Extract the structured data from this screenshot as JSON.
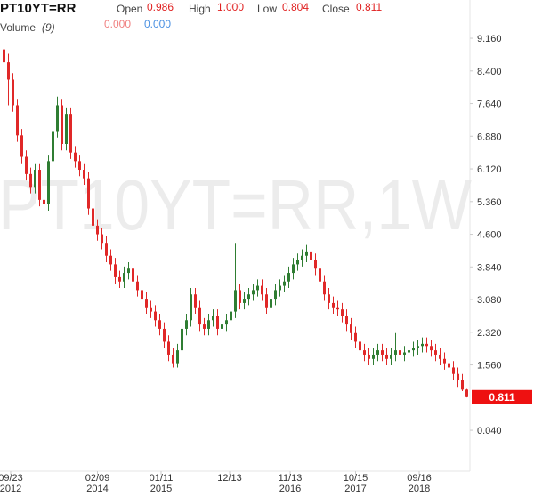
{
  "header": {
    "symbol": "PT10YT=RR",
    "open_label": "Open",
    "open": "0.986",
    "high_label": "High",
    "high": "1.000",
    "low_label": "Low",
    "low": "0.804",
    "close_label": "Close",
    "close": "0.811",
    "volume_label": "Volume",
    "volume_period": "(9)",
    "volume_values": [
      "0.000",
      "0.000"
    ]
  },
  "chart_data": {
    "type": "candlestick",
    "watermark": "PT10YT=RR,1W",
    "up_color": "#2f7d32",
    "down_color": "#e02828",
    "last_color": "#ee1111",
    "xlim": [
      -0.9,
      104.7
    ],
    "ylim": [
      -0.91,
      10.05
    ],
    "yticks": [
      {
        "value": 0.04,
        "label": "0.040"
      },
      {
        "value": 1.56,
        "label": "1.560"
      },
      {
        "value": 2.32,
        "label": "2.320"
      },
      {
        "value": 3.08,
        "label": "3.080"
      },
      {
        "value": 3.84,
        "label": "3.840"
      },
      {
        "value": 4.6,
        "label": "4.600"
      },
      {
        "value": 5.36,
        "label": "5.360"
      },
      {
        "value": 6.12,
        "label": "6.120"
      },
      {
        "value": 6.88,
        "label": "6.880"
      },
      {
        "value": 7.64,
        "label": "7.640"
      },
      {
        "value": 8.4,
        "label": "8.400"
      },
      {
        "value": 9.16,
        "label": "9.160"
      }
    ],
    "xticks": [
      {
        "value": 1.5,
        "label": "09/23",
        "year": "2012"
      },
      {
        "value": 21,
        "label": "02/09",
        "year": "2014"
      },
      {
        "value": 35.3,
        "label": "01/11",
        "year": "2015"
      },
      {
        "value": 50.7,
        "label": "12/13"
      },
      {
        "value": 64.3,
        "label": "11/13",
        "year": "2016"
      },
      {
        "value": 79,
        "label": "10/15",
        "year": "2017"
      },
      {
        "value": 93.3,
        "label": "09/16",
        "year": "2018"
      }
    ],
    "open": [
      8.9,
      8.6,
      8.2,
      7.6,
      6.9,
      6.4,
      6.0,
      5.7,
      6.1,
      5.4,
      5.3,
      6.3,
      7.0,
      7.6,
      6.7,
      7.4,
      6.5,
      6.3,
      6.1,
      5.9,
      5.2,
      4.8,
      4.6,
      4.4,
      4.1,
      3.9,
      3.6,
      3.5,
      3.7,
      3.8,
      3.5,
      3.3,
      3.1,
      2.9,
      2.8,
      2.6,
      2.4,
      2.1,
      1.8,
      1.6,
      1.9,
      2.4,
      2.6,
      3.2,
      2.9,
      2.5,
      2.4,
      2.6,
      2.7,
      2.4,
      2.5,
      2.6,
      2.8,
      3.3,
      3.0,
      3.1,
      3.2,
      3.3,
      3.4,
      3.2,
      2.9,
      3.1,
      3.3,
      3.4,
      3.5,
      3.7,
      3.9,
      4.0,
      4.1,
      4.2,
      4.0,
      3.8,
      3.5,
      3.2,
      3.0,
      2.9,
      2.85,
      2.7,
      2.5,
      2.3,
      2.1,
      1.9,
      1.8,
      1.7,
      1.8,
      1.9,
      1.8,
      1.7,
      1.8,
      1.9,
      1.8,
      1.85,
      1.9,
      1.95,
      2.0,
      2.05,
      2.0,
      1.9,
      1.8,
      1.7,
      1.6,
      1.5,
      1.35,
      1.2,
      0.986
    ],
    "high": [
      9.2,
      8.8,
      8.35,
      7.75,
      7.05,
      6.55,
      6.15,
      6.25,
      6.25,
      5.6,
      6.45,
      7.15,
      7.8,
      7.75,
      7.55,
      7.55,
      6.65,
      6.45,
      6.25,
      6.05,
      5.35,
      4.95,
      4.75,
      4.55,
      4.25,
      4.05,
      3.75,
      3.85,
      3.95,
      3.95,
      3.65,
      3.45,
      3.25,
      3.05,
      2.95,
      2.75,
      2.55,
      2.25,
      1.95,
      2.05,
      2.55,
      2.75,
      3.35,
      3.35,
      3.05,
      2.65,
      2.75,
      2.85,
      2.85,
      2.65,
      2.75,
      2.95,
      4.4,
      3.45,
      3.25,
      3.35,
      3.45,
      3.55,
      3.55,
      3.35,
      3.25,
      3.45,
      3.55,
      3.65,
      3.85,
      4.05,
      4.15,
      4.25,
      4.35,
      4.35,
      4.15,
      3.95,
      3.65,
      3.35,
      3.15,
      3.05,
      3.0,
      2.85,
      2.65,
      2.45,
      2.25,
      2.05,
      1.95,
      1.95,
      2.05,
      2.05,
      1.95,
      1.95,
      2.3,
      2.05,
      2.0,
      2.05,
      2.1,
      2.15,
      2.2,
      2.2,
      2.15,
      2.05,
      1.95,
      1.85,
      1.75,
      1.65,
      1.5,
      1.35,
      1.0
    ],
    "low": [
      8.3,
      7.6,
      7.45,
      6.75,
      6.25,
      5.85,
      5.55,
      5.55,
      5.25,
      5.1,
      5.15,
      6.15,
      6.85,
      6.55,
      6.55,
      6.35,
      6.15,
      5.95,
      5.75,
      5.05,
      4.65,
      4.45,
      4.25,
      3.95,
      3.75,
      3.45,
      3.35,
      3.35,
      3.55,
      3.35,
      3.15,
      2.95,
      2.75,
      2.65,
      2.45,
      2.25,
      1.95,
      1.65,
      1.5,
      1.5,
      1.75,
      2.25,
      2.45,
      2.75,
      2.35,
      2.25,
      2.25,
      2.45,
      2.25,
      2.25,
      2.35,
      2.45,
      2.65,
      2.85,
      2.85,
      2.95,
      3.05,
      3.15,
      3.05,
      2.75,
      2.75,
      2.95,
      3.15,
      3.25,
      3.35,
      3.55,
      3.75,
      3.85,
      3.95,
      3.85,
      3.65,
      3.35,
      3.05,
      2.85,
      2.75,
      2.7,
      2.55,
      2.35,
      2.15,
      1.95,
      1.75,
      1.65,
      1.55,
      1.55,
      1.65,
      1.65,
      1.55,
      1.55,
      1.65,
      1.65,
      1.65,
      1.7,
      1.75,
      1.8,
      1.85,
      1.85,
      1.75,
      1.65,
      1.55,
      1.45,
      1.35,
      1.2,
      1.05,
      0.95,
      0.804
    ],
    "close": [
      8.6,
      8.2,
      7.6,
      6.9,
      6.4,
      6.0,
      5.7,
      6.1,
      5.4,
      5.3,
      6.3,
      7.0,
      7.6,
      6.7,
      7.4,
      6.5,
      6.3,
      6.1,
      5.9,
      5.2,
      4.8,
      4.6,
      4.4,
      4.1,
      3.9,
      3.6,
      3.5,
      3.7,
      3.8,
      3.5,
      3.3,
      3.1,
      2.9,
      2.8,
      2.6,
      2.4,
      2.1,
      1.8,
      1.6,
      1.9,
      2.4,
      2.6,
      3.2,
      2.9,
      2.5,
      2.4,
      2.6,
      2.7,
      2.4,
      2.5,
      2.6,
      2.8,
      3.3,
      3.0,
      3.1,
      3.2,
      3.3,
      3.4,
      3.2,
      2.9,
      3.1,
      3.3,
      3.4,
      3.5,
      3.7,
      3.9,
      4.0,
      4.1,
      4.2,
      4.0,
      3.8,
      3.5,
      3.2,
      3.0,
      2.9,
      2.85,
      2.7,
      2.5,
      2.3,
      2.1,
      1.9,
      1.8,
      1.7,
      1.8,
      1.9,
      1.8,
      1.7,
      1.8,
      1.9,
      1.8,
      1.85,
      1.9,
      1.95,
      2.0,
      2.05,
      2.0,
      1.9,
      1.8,
      1.7,
      1.6,
      1.5,
      1.35,
      1.2,
      0.986,
      0.811
    ]
  }
}
